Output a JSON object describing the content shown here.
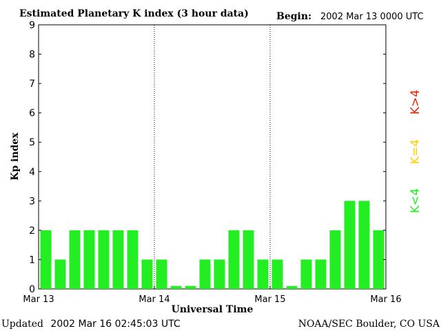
{
  "chart_data": {
    "type": "bar",
    "title": "Estimated Planetary K index (3 hour data)",
    "begin_label": "Begin:",
    "begin_value": "2002 Mar 13 0000 UTC",
    "xlabel": "Universal Time",
    "ylabel": "Kp index",
    "ylim": [
      0,
      9
    ],
    "yticks": [
      "0",
      "1",
      "2",
      "3",
      "4",
      "5",
      "6",
      "7",
      "8",
      "9"
    ],
    "xticks": [
      "Mar 13",
      "Mar 14",
      "Mar 15",
      "Mar 16"
    ],
    "interval_hours": 3,
    "values": [
      2,
      1,
      2,
      2,
      2,
      2,
      2,
      1,
      1,
      0.1,
      0.1,
      1,
      1,
      2,
      2,
      1,
      1,
      0.1,
      1,
      1,
      2,
      3,
      3,
      2
    ],
    "bar_color": "#22ee22",
    "legend": [
      {
        "label": "K<4",
        "color": "#22ee22"
      },
      {
        "label": "K=4",
        "color": "#ffcc00"
      },
      {
        "label": "K>4",
        "color": "#ee2200"
      }
    ],
    "grid": false,
    "day_separators": "dotted"
  },
  "footer": {
    "updated_label": "Updated",
    "updated_value": "2002 Mar 16 02:45:03 UTC",
    "source": "NOAA/SEC Boulder, CO USA"
  }
}
